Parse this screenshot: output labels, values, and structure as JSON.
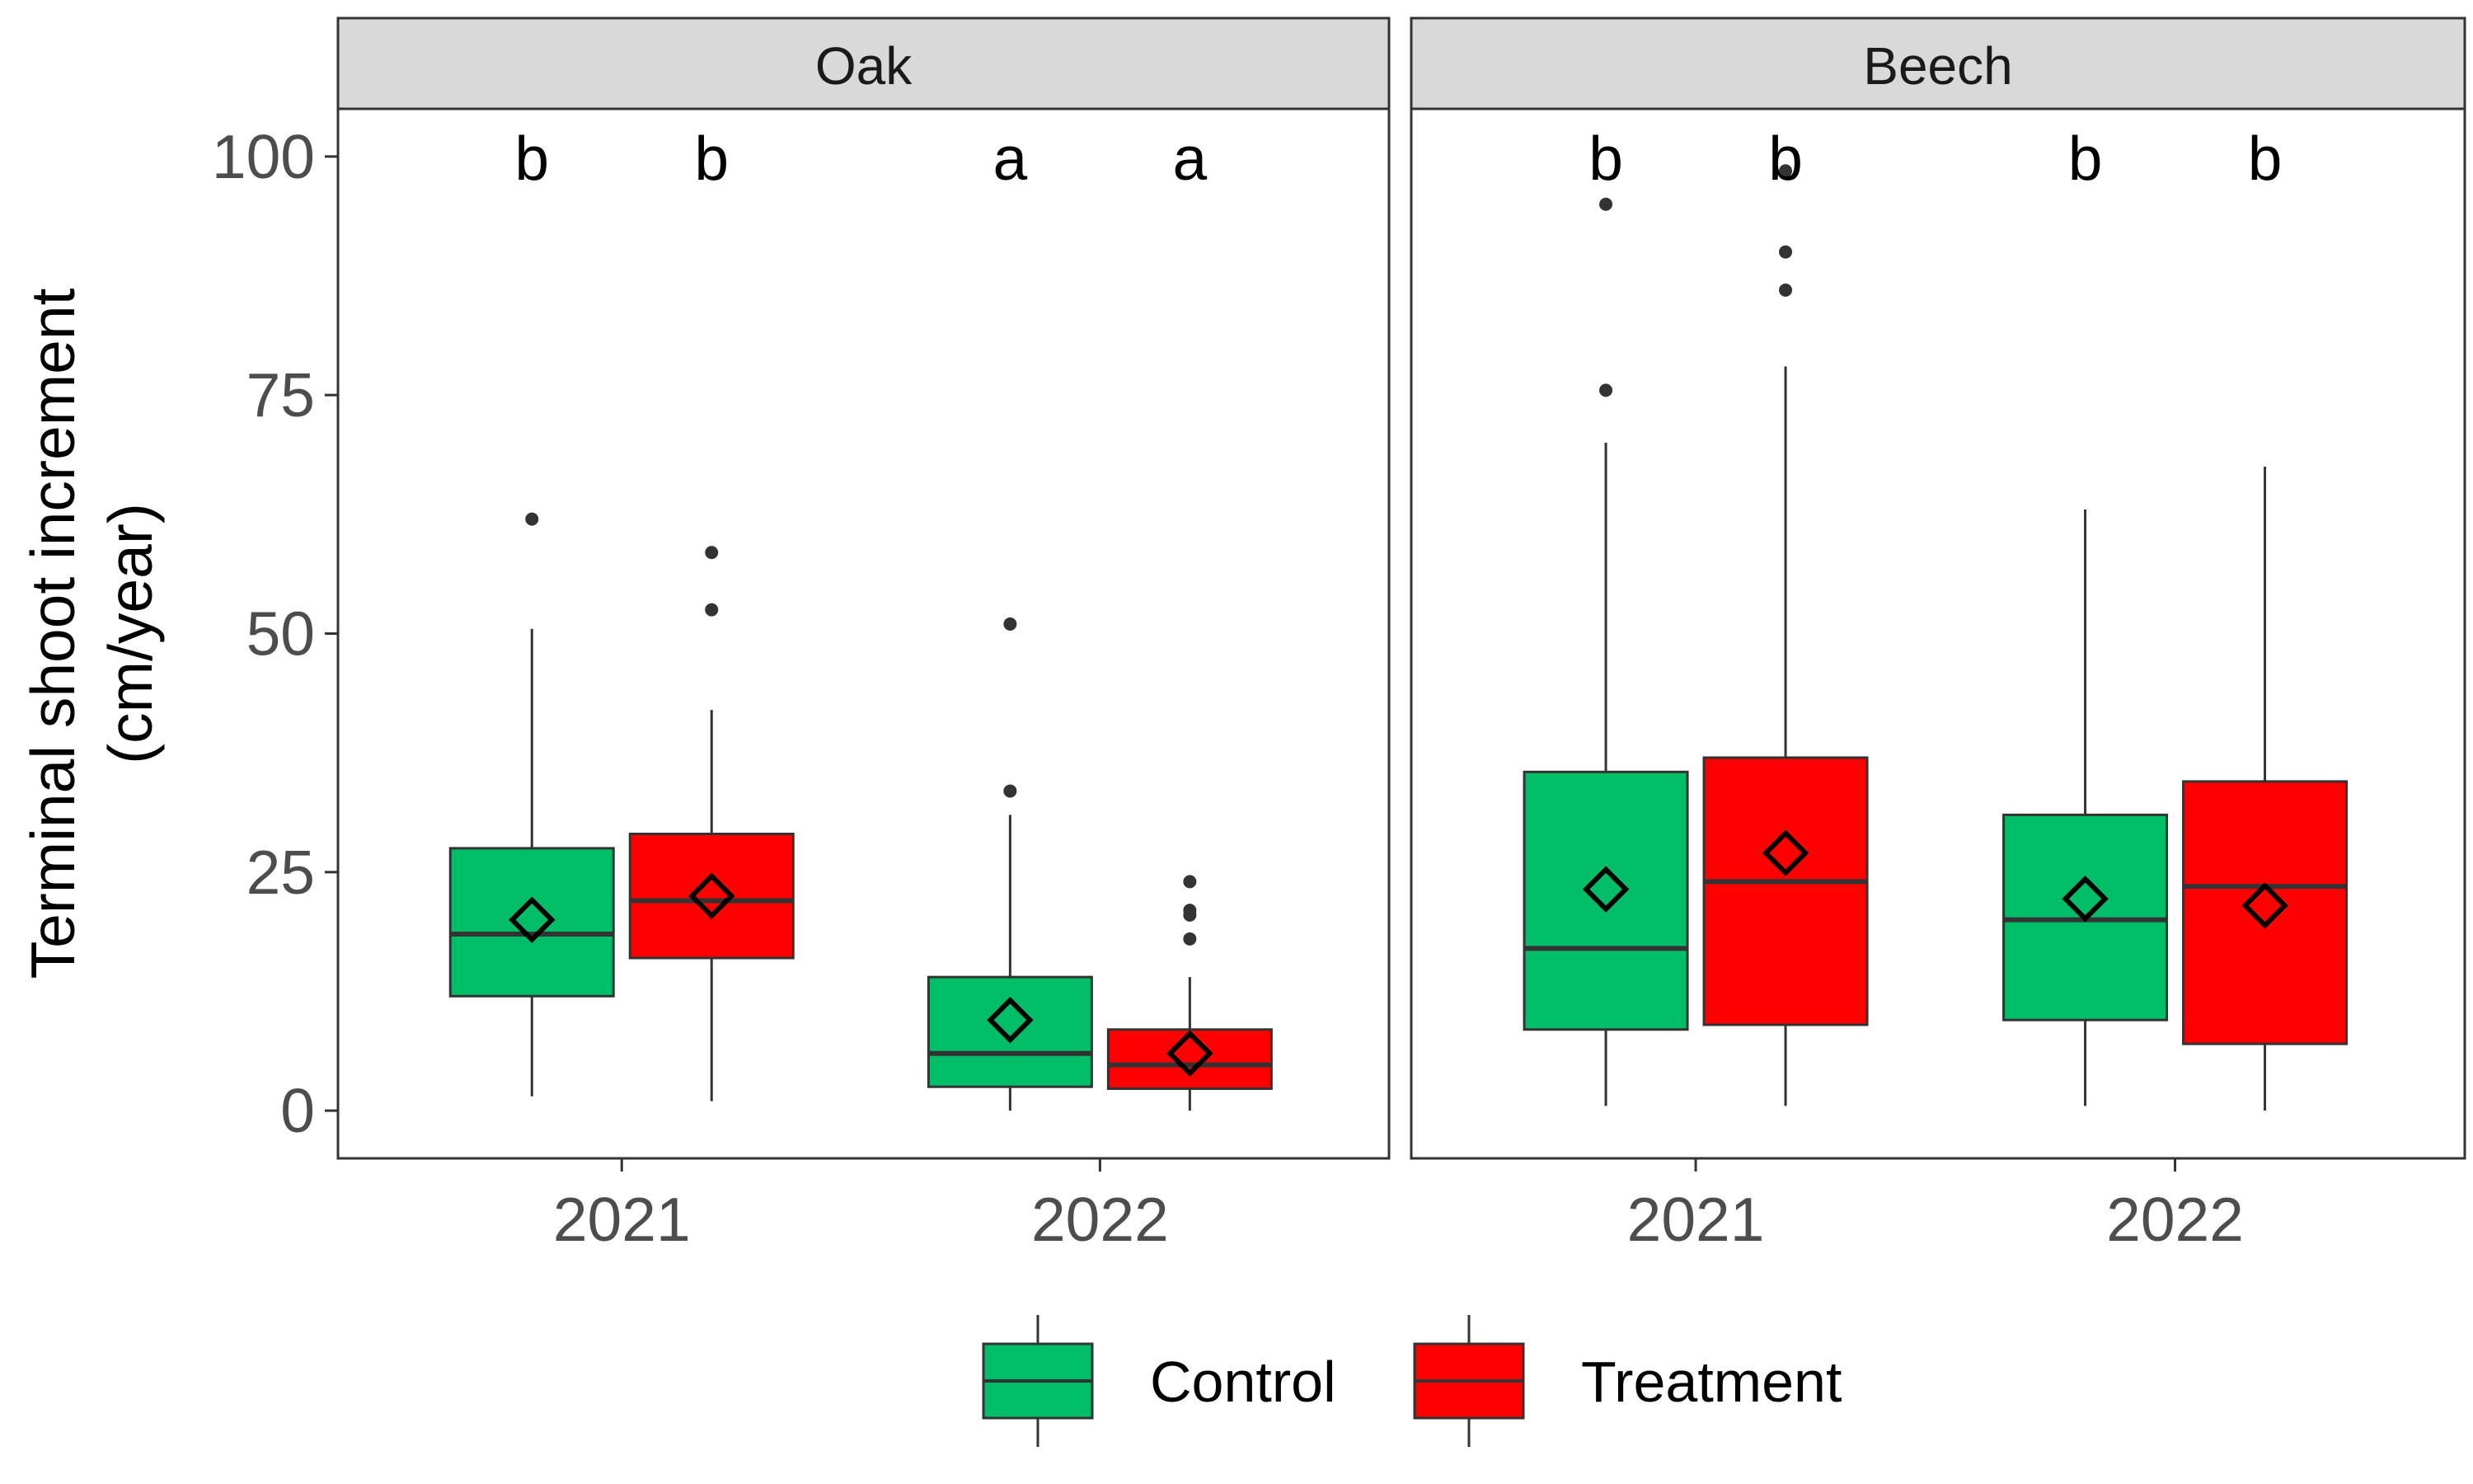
{
  "chart_data": {
    "type": "boxplot",
    "ylabel_lines": [
      "Terminal shoot increment",
      "(cm/year)"
    ],
    "xlabel": "",
    "ylim": [
      -5,
      105
    ],
    "yticks": [
      0,
      25,
      50,
      75,
      100
    ],
    "categories": [
      "2021",
      "2022"
    ],
    "legend": {
      "position": "bottom",
      "entries": [
        {
          "name": "Control",
          "color": "#00BE67"
        },
        {
          "name": "Treatment",
          "color": "#FF0000"
        }
      ]
    },
    "colors": {
      "Control": "#00BE67",
      "Treatment": "#FF0000",
      "box_line": "#333333",
      "strip_fill": "#d9d9d9",
      "outlier": "#333333"
    },
    "panels": [
      {
        "name": "Oak",
        "boxes": [
          {
            "year": "2021",
            "group": "Control",
            "letter": "b",
            "min": 1.5,
            "q1": 12,
            "median": 18.5,
            "q3": 27.5,
            "max": 50.5,
            "mean": 20,
            "outliers": [
              62
            ]
          },
          {
            "year": "2021",
            "group": "Treatment",
            "letter": "b",
            "min": 1,
            "q1": 16,
            "median": 22,
            "q3": 29,
            "max": 42,
            "mean": 22.5,
            "outliers": [
              52.5,
              58.5
            ]
          },
          {
            "year": "2022",
            "group": "Control",
            "letter": "a",
            "min": 0,
            "q1": 2.5,
            "median": 6,
            "q3": 14,
            "max": 31,
            "mean": 9.5,
            "outliers": [
              33.5,
              51
            ]
          },
          {
            "year": "2022",
            "group": "Treatment",
            "letter": "a",
            "min": 0,
            "q1": 2.3,
            "median": 4.8,
            "q3": 8.5,
            "max": 14,
            "mean": 6,
            "outliers": [
              18,
              20.5,
              21,
              24
            ]
          }
        ]
      },
      {
        "name": "Beech",
        "boxes": [
          {
            "year": "2021",
            "group": "Control",
            "letter": "b",
            "min": 0.5,
            "q1": 8.5,
            "median": 17,
            "q3": 35.5,
            "max": 70,
            "mean": 23.2,
            "outliers": [
              75.5,
              95
            ]
          },
          {
            "year": "2021",
            "group": "Treatment",
            "letter": "b",
            "min": 0.5,
            "q1": 9,
            "median": 24,
            "q3": 37,
            "max": 78,
            "mean": 27,
            "outliers": [
              86,
              90,
              98.5
            ]
          },
          {
            "year": "2022",
            "group": "Control",
            "letter": "b",
            "min": 0.5,
            "q1": 9.5,
            "median": 20,
            "q3": 31,
            "max": 63,
            "mean": 22.2,
            "outliers": []
          },
          {
            "year": "2022",
            "group": "Treatment",
            "letter": "b",
            "min": 0,
            "q1": 7,
            "median": 23.5,
            "q3": 34.5,
            "max": 67.5,
            "mean": 21.5,
            "outliers": []
          }
        ]
      }
    ]
  }
}
